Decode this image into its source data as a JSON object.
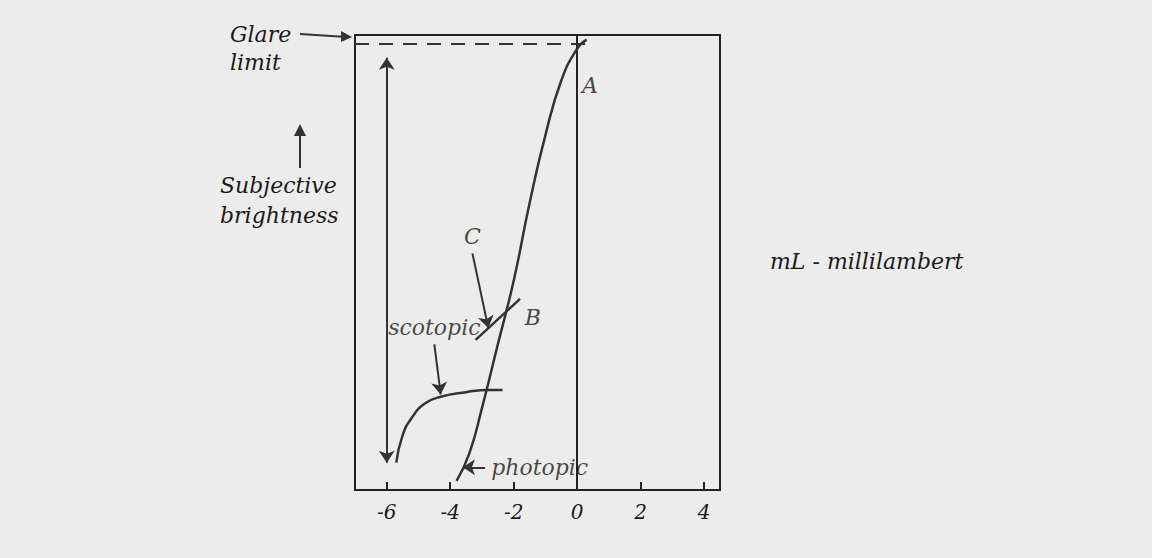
{
  "chart_data": {
    "type": "line",
    "ylabel": "Subjective brightness",
    "note": "mL - millilambert",
    "xlim": [
      -7,
      4.5
    ],
    "xticks": [
      -6,
      -4,
      -2,
      0,
      2,
      4
    ],
    "ylim": [
      0,
      10
    ],
    "tick_labels": "x",
    "grid": false,
    "color": "#333333",
    "series": [
      {
        "name": "photopic",
        "x": [
          -3.8,
          -3.4,
          -3,
          -2.5,
          -2,
          -1.5,
          -1,
          -0.5,
          0,
          0.3
        ],
        "values": [
          0.2,
          0.8,
          1.8,
          3.2,
          4.6,
          6.3,
          7.8,
          9,
          9.7,
          9.9
        ],
        "label_at": [
          -2.9,
          0.5
        ],
        "arrow_to": [
          -3.6,
          0.5
        ]
      },
      {
        "name": "scotopic",
        "x": [
          -5.7,
          -5.5,
          -5.2,
          -4.8,
          -4.3,
          -3.5,
          -2.8,
          -2.35
        ],
        "values": [
          0.6,
          1.2,
          1.6,
          1.9,
          2.05,
          2.15,
          2.2,
          2.2
        ],
        "label_at": [
          -4.5,
          3.2
        ],
        "arrow_to": [
          -4.3,
          2.1
        ]
      }
    ],
    "glare_limit": {
      "label": "Glare limit",
      "y": 9.8
    },
    "adaptation_range": {
      "x": -6,
      "y": [
        0.6,
        9.5
      ]
    },
    "brightness_line": {
      "x": [
        -3.2,
        -1.8
      ],
      "y": [
        3.3,
        4.2
      ]
    },
    "annotations": [
      {
        "text": "A",
        "x": 0.4,
        "y": 8.9
      },
      {
        "text": "B",
        "x": -1.4,
        "y": 3.8
      },
      {
        "text": "C",
        "x": -3.3,
        "y": 5.2,
        "arrow_to": [
          -2.8,
          3.56
        ]
      }
    ]
  }
}
